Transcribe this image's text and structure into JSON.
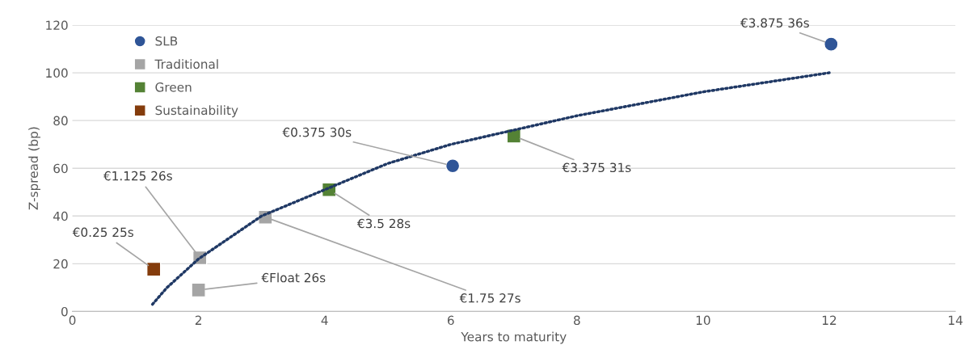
{
  "chart_data": {
    "type": "scatter",
    "xlabel": "Years to maturity",
    "ylabel": "Z-spread (bp)",
    "xlim": [
      0,
      14
    ],
    "xticks": [
      0,
      2,
      4,
      6,
      8,
      10,
      12,
      14
    ],
    "ylim": [
      0,
      120
    ],
    "yticks": [
      0,
      20,
      40,
      60,
      80,
      100,
      120
    ],
    "grid": "y",
    "legend": "top left",
    "series": [
      {
        "name": "SLB",
        "color": "#2f5597",
        "marker": "circle",
        "x": [
          6.03,
          12.03
        ],
        "values": [
          61,
          112
        ]
      },
      {
        "name": "Traditional",
        "color": "#a5a5a5",
        "marker": "square",
        "x": [
          2.02,
          2.0,
          3.06
        ],
        "values": [
          22.5,
          9,
          39.5
        ]
      },
      {
        "name": "Green",
        "color": "#548235",
        "marker": "square",
        "x": [
          4.07,
          7.0
        ],
        "values": [
          51,
          73.5
        ]
      },
      {
        "name": "Sustainability",
        "color": "#843c0c",
        "marker": "square",
        "x": [
          1.29
        ],
        "values": [
          17.7
        ]
      },
      {
        "type": "line",
        "color": "#1f3864",
        "line_style": "dotted",
        "marker": "none",
        "x": [
          1.27,
          1.5,
          2,
          2.5,
          3,
          4,
          5,
          6,
          7,
          8,
          9,
          10,
          11,
          12
        ],
        "values": [
          3,
          10,
          22,
          31,
          40,
          51,
          62,
          70,
          76,
          82,
          87,
          92,
          96,
          100
        ]
      }
    ],
    "annotations": [
      {
        "text": "€3.875 36s",
        "x": 12.03,
        "y": 112
      },
      {
        "text": "€0.375 30s",
        "x": 6.03,
        "y": 61
      },
      {
        "text": "€3.375 31s",
        "x": 7.0,
        "y": 73.5
      },
      {
        "text": "€3.5 28s",
        "x": 4.07,
        "y": 51
      },
      {
        "text": "€1.125 26s",
        "x": 2.02,
        "y": 22.5
      },
      {
        "text": "€Float 26s",
        "x": 2.0,
        "y": 9
      },
      {
        "text": "€1.75 27s",
        "x": 3.06,
        "y": 39.5
      },
      {
        "text": "€0.25 25s",
        "x": 1.29,
        "y": 17.7
      }
    ]
  }
}
